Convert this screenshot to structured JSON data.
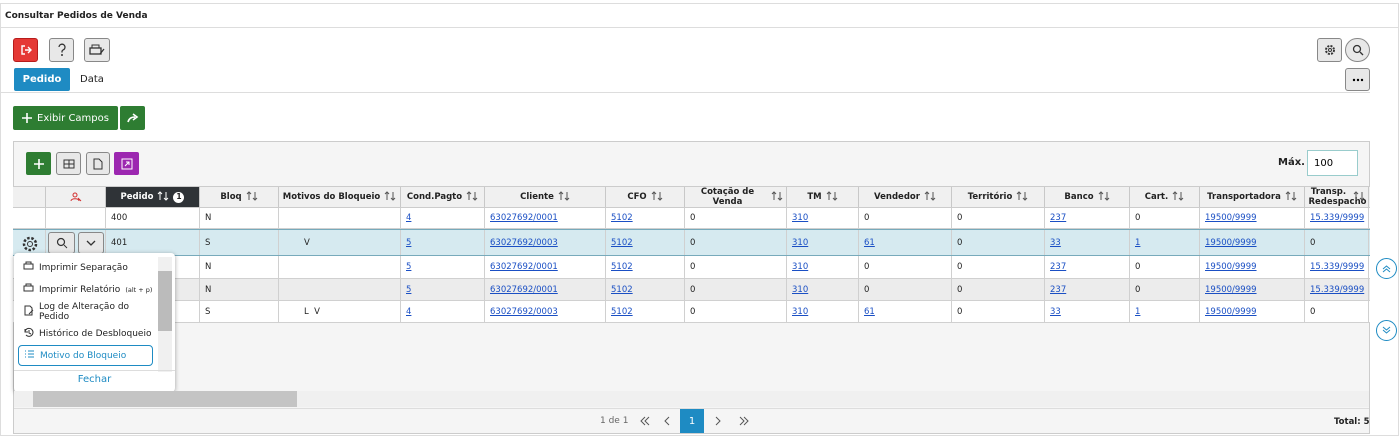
{
  "header": {
    "title": "Consultar Pedidos de Venda"
  },
  "tabs": [
    "Pedido",
    "Data"
  ],
  "buttons": {
    "exibir_campos": "Exibir Campos"
  },
  "grid": {
    "max_label": "Máx.",
    "max_value": "100",
    "sort_badge": "1",
    "columns": [
      "Pedido",
      "Bloq",
      "Motivos do Bloqueio",
      "Cond.Pagto",
      "Cliente",
      "CFO",
      "Cotação de Venda",
      "TM",
      "Vendedor",
      "Território",
      "Banco",
      "Cart.",
      "Transportadora",
      "Transp. Redespacho"
    ],
    "rows": [
      [
        "400",
        "N",
        null,
        "4",
        "63027692/0001",
        "5102",
        "0",
        "310",
        "0",
        "0",
        "237",
        "0",
        "19500/9999",
        "15.339/9999"
      ],
      [
        "401",
        "S",
        "V",
        "5",
        "63027692/0003",
        "5102",
        "0",
        "310",
        "61",
        "0",
        "33",
        "1",
        "19500/9999",
        "0"
      ],
      [
        null,
        "N",
        null,
        "5",
        "63027692/0001",
        "5102",
        "0",
        "310",
        "0",
        "0",
        "237",
        "0",
        "19500/9999",
        "15.339/9999"
      ],
      [
        null,
        "N",
        null,
        "5",
        "63027692/0001",
        "5102",
        "0",
        "310",
        "0",
        "0",
        "237",
        "0",
        "19500/9999",
        "15.339/9999"
      ],
      [
        null,
        "S",
        "L  V",
        "4",
        "63027692/0003",
        "5102",
        "0",
        "310",
        "61",
        "0",
        "33",
        "1",
        "19500/9999",
        "0"
      ]
    ]
  },
  "menu": {
    "items": [
      {
        "label": "Imprimir Separação"
      },
      {
        "label": "Imprimir Relatório",
        "shortcut": "(alt + p)"
      },
      {
        "label": "Log de Alteração do Pedido"
      },
      {
        "label": "Histórico de Desbloqueio"
      },
      {
        "label": "Motivo do Bloqueio"
      }
    ],
    "close": "Fechar"
  },
  "pagination": {
    "range": "1 de 1",
    "page": "1",
    "total": "Total: 5"
  }
}
